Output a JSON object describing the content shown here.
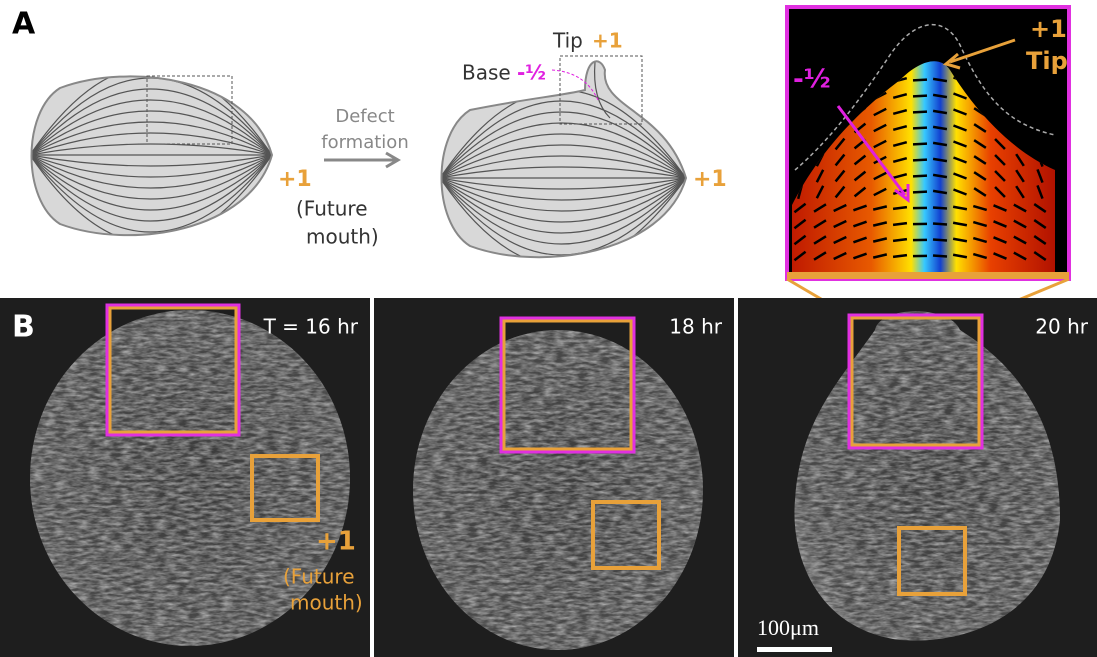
{
  "panel_a": {
    "label": "A",
    "left_mouth_sign": "+1",
    "left_mouth_note": [
      "(Future",
      "mouth)"
    ],
    "arrow_label": [
      "Defect",
      "formation"
    ],
    "tip_label": "Tip",
    "tip_sign": "+1",
    "base_label": "Base",
    "base_sign": "-½",
    "right_mouth_sign": "+1",
    "inset": {
      "tip_sign": "+1",
      "tip_label": "Tip",
      "base_sign": "-½"
    }
  },
  "panel_b": {
    "label": "B",
    "times": [
      "T = 16 hr",
      "18 hr",
      "20 hr"
    ],
    "mouth_sign": "+1",
    "mouth_note": [
      "(Future",
      "mouth)"
    ],
    "scale_bar": "100μm"
  }
}
